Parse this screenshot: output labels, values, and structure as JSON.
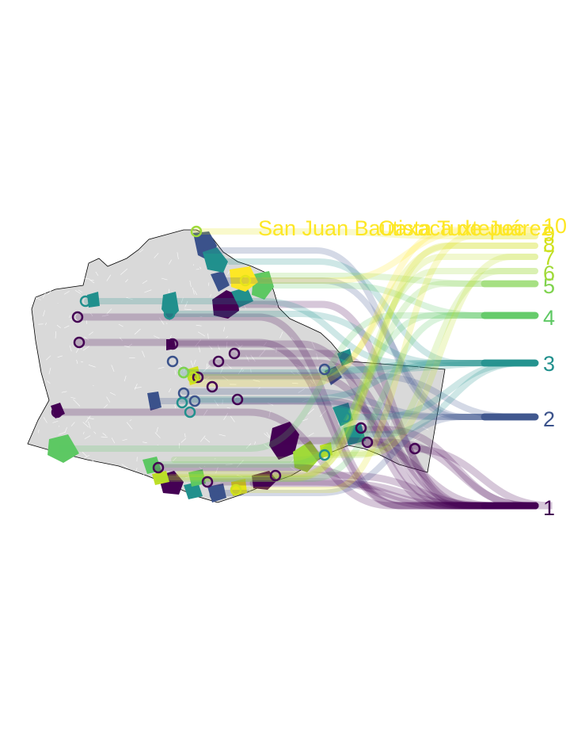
{
  "palette": {
    "1": "#440154",
    "2": "#3b528b",
    "3": "#21908d",
    "4": "#5dc863",
    "5": "#7fd34e",
    "6": "#a0da39",
    "7": "#bddf26",
    "8": "#d0e11c",
    "9": "#e5e419",
    "10": "#fde725"
  },
  "base_fill": "#d9d9d9",
  "ranks": [
    {
      "id": "rank-1",
      "text": "1",
      "color": "#440154"
    },
    {
      "id": "rank-2",
      "text": "2",
      "color": "#3b528b"
    },
    {
      "id": "rank-3",
      "text": "3",
      "color": "#21908d"
    },
    {
      "id": "rank-4",
      "text": "4",
      "color": "#5dc863"
    },
    {
      "id": "rank-5",
      "text": "5",
      "color": "#7fd34e"
    },
    {
      "id": "rank-6",
      "text": "6",
      "color": "#a0da39"
    },
    {
      "id": "rank-7",
      "text": "7",
      "color": "#bddf26"
    },
    {
      "id": "rank-8",
      "text": "8",
      "color": "#d0e11c"
    },
    {
      "id": "rank-9",
      "text": "9",
      "color": "#e5e419"
    },
    {
      "id": "rank-10",
      "text": "10",
      "color": "#fde725"
    }
  ],
  "top_labels": [
    {
      "id": "label-san-juan",
      "text": "San Juan Bautista Tuxtepec",
      "color": "#fde725"
    },
    {
      "id": "label-oaxaca",
      "text": "Oaxaca de Juárez",
      "color": "#fde725"
    }
  ]
}
